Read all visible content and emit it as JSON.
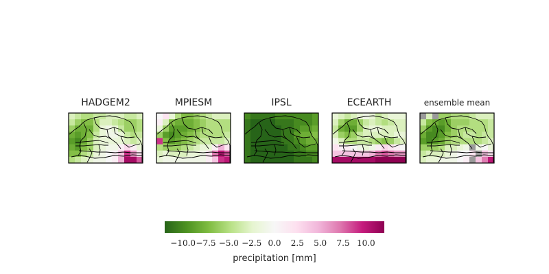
{
  "chart_data": {
    "type": "heatmap",
    "description_units": "precipitation anomaly in mm on a regular grid (12 columns x 8 rows) over Senegal",
    "colormap": {
      "name": "PiYG",
      "stops": [
        "#276419",
        "#4d9221",
        "#7fbc41",
        "#b8e186",
        "#e6f5d0",
        "#f7f7f7",
        "#fde0ef",
        "#f1b6da",
        "#de77ae",
        "#c51b7d",
        "#8e0152"
      ],
      "vmin": -12,
      "vmax": 12,
      "nodata_color": "#9a9a9a"
    },
    "colorbar": {
      "label": "precipitation [mm]",
      "ticks": [
        -10,
        -7.5,
        -5,
        -2.5,
        0,
        2.5,
        5,
        7.5,
        10
      ],
      "tick_labels": [
        "−10.0",
        "−7.5",
        "−5.0",
        "−2.5",
        "0.0",
        "2.5",
        "5.0",
        "7.5",
        "10.0"
      ]
    },
    "panels": [
      {
        "title": "HADGEM2",
        "grid": [
          [
            -3,
            -4,
            -5,
            -5,
            -4,
            -4,
            -3,
            -3,
            -3,
            -4,
            -4,
            -3
          ],
          [
            -4,
            -6,
            -7,
            -7,
            -5,
            -3,
            -3,
            -4,
            -5,
            -6,
            -6,
            -5
          ],
          [
            -6,
            -8,
            -8,
            -8,
            -5,
            -2,
            -1,
            -2,
            -4,
            -6,
            -6,
            -5
          ],
          [
            -8,
            -9,
            -8,
            -7,
            -4,
            -2,
            -1,
            -1,
            -2,
            -4,
            -5,
            -4
          ],
          [
            -9,
            -10,
            -8,
            -6,
            -3,
            -2,
            -2,
            -2,
            -2,
            -3,
            -4,
            -3
          ],
          [
            -8,
            -9,
            -7,
            -6,
            -3,
            -2,
            -1,
            -1,
            1,
            3,
            1,
            -2
          ],
          [
            -7,
            -7,
            -5,
            -4,
            -2,
            -1,
            0,
            1,
            4,
            9,
            6,
            2
          ],
          [
            -5,
            -4,
            -3,
            -2,
            -1,
            -1,
            0,
            1,
            5,
            11,
            11,
            8
          ]
        ]
      },
      {
        "title": "MPIESM",
        "grid": [
          [
            0,
            2,
            -2,
            -5,
            -7,
            -7,
            -6,
            -5,
            -4,
            -3,
            -3,
            -3
          ],
          [
            1,
            -3,
            -7,
            -8,
            -8,
            -8,
            -7,
            -6,
            -5,
            -5,
            -5,
            -5
          ],
          [
            -2,
            -6,
            -9,
            -9,
            -9,
            -8,
            -7,
            -6,
            -5,
            -5,
            -5,
            -5
          ],
          [
            -6,
            -9,
            -10,
            -9,
            -8,
            -7,
            -6,
            -5,
            -5,
            -5,
            -5,
            -4
          ],
          [
            9,
            -7,
            -9,
            -8,
            -7,
            -6,
            -5,
            -4,
            -4,
            -4,
            -4,
            -3
          ],
          [
            -5,
            -6,
            -6,
            -6,
            -5,
            -4,
            -3,
            -2,
            -2,
            1,
            5,
            2
          ],
          [
            -3,
            -2,
            -3,
            -3,
            -3,
            -2,
            -2,
            -1,
            2,
            7,
            10,
            8
          ],
          [
            -2,
            -1,
            -1,
            -1,
            -1,
            -1,
            -1,
            -1,
            1,
            4,
            9,
            10
          ]
        ]
      },
      {
        "title": "IPSL",
        "grid": [
          [
            -10,
            -11,
            -11,
            -11,
            -11,
            -10,
            -10,
            -10,
            -10,
            -10,
            -10,
            -9
          ],
          [
            -11,
            -12,
            -12,
            -12,
            -12,
            -11,
            -11,
            -11,
            -10,
            -10,
            -10,
            -9
          ],
          [
            -11,
            -12,
            -12,
            -12,
            -12,
            -12,
            -11,
            -11,
            -10,
            -9,
            -9,
            -8
          ],
          [
            -11,
            -12,
            -12,
            -12,
            -12,
            -12,
            -11,
            -11,
            -9,
            -8,
            -8,
            -7
          ],
          [
            -11,
            -12,
            -12,
            -12,
            -12,
            -12,
            -11,
            -11,
            -10,
            -9,
            -8,
            -8
          ],
          [
            -11,
            -12,
            -12,
            -12,
            -12,
            -12,
            -12,
            -11,
            -11,
            -10,
            -9,
            -9
          ],
          [
            -11,
            -12,
            -12,
            -12,
            -12,
            -12,
            -12,
            -12,
            -11,
            -11,
            -10,
            -10
          ],
          [
            -11,
            -12,
            -12,
            -12,
            -12,
            -12,
            -12,
            -12,
            -11,
            -11,
            -11,
            -10
          ]
        ]
      },
      {
        "title": "ECEARTH",
        "grid": [
          [
            -2,
            -3,
            -4,
            -3,
            -2,
            -1,
            -2,
            -4,
            -3,
            -2,
            -2,
            -2
          ],
          [
            -3,
            -6,
            -8,
            -8,
            -6,
            -4,
            -3,
            -4,
            -5,
            -4,
            -3,
            -3
          ],
          [
            -4,
            -8,
            -9,
            -9,
            -6,
            -3,
            -2,
            -2,
            -3,
            -3,
            -3,
            -3
          ],
          [
            -3,
            -6,
            -7,
            -6,
            -4,
            -3,
            -3,
            -3,
            -3,
            -3,
            -2,
            -2
          ],
          [
            -1,
            -3,
            -5,
            -5,
            -4,
            -4,
            -5,
            -6,
            -7,
            -6,
            -4,
            -3
          ],
          [
            2,
            1,
            1,
            0,
            -1,
            -2,
            -1,
            1,
            3,
            2,
            1,
            0
          ],
          [
            4,
            4,
            4,
            4,
            4,
            4,
            5,
            7,
            8,
            7,
            6,
            6
          ],
          [
            11,
            11,
            11,
            11,
            11,
            11,
            11,
            12,
            12,
            12,
            12,
            12
          ]
        ]
      },
      {
        "title": "ensemble mean",
        "grid": [
          [
            null,
            -3,
            null,
            -6,
            -6,
            -5,
            -5,
            -5,
            -4,
            -3,
            -3,
            -3
          ],
          [
            -4,
            -7,
            -8,
            -9,
            -8,
            -6,
            -6,
            -6,
            -5,
            -5,
            -5,
            -4
          ],
          [
            -6,
            -9,
            -10,
            -10,
            -8,
            -6,
            -5,
            -5,
            -5,
            -5,
            -5,
            -4
          ],
          [
            -8,
            -10,
            -10,
            -9,
            -7,
            -6,
            -5,
            -4,
            -4,
            -5,
            -4,
            -4
          ],
          [
            -9,
            -10,
            -9,
            -8,
            -6,
            -5,
            -5,
            -5,
            -5,
            -5,
            -4,
            -3
          ],
          [
            -6,
            -6,
            -6,
            -5,
            -3,
            -3,
            -2,
            -1,
            null,
            -1,
            0,
            -2
          ],
          [
            -4,
            -3,
            -3,
            -3,
            -2,
            -1,
            0,
            0,
            2,
            null,
            4,
            2
          ],
          [
            -3,
            -2,
            -2,
            -1,
            -1,
            -1,
            0,
            1,
            null,
            4,
            7,
            10
          ]
        ]
      }
    ]
  }
}
